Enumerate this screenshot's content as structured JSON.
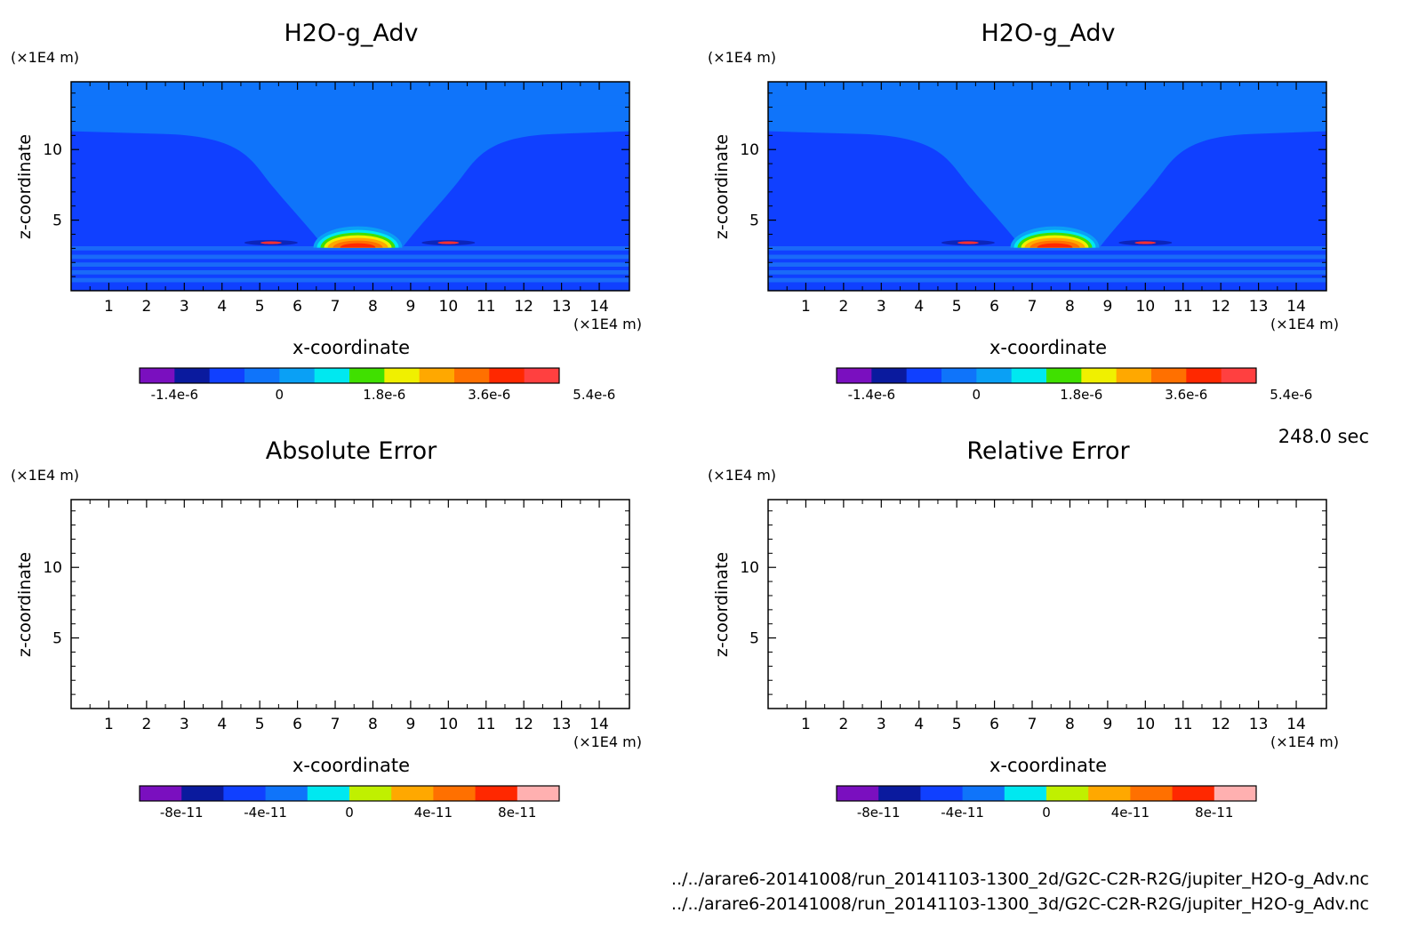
{
  "time_label": "248.0 sec",
  "files": [
    "../../arare6-20141008/run_20141103-1300_2d/G2C-C2R-R2G/jupiter_H2O-g_Adv.nc",
    "../../arare6-20141008/run_20141103-1300_3d/G2C-C2R-R2G/jupiter_H2O-g_Adv.nc"
  ],
  "colors": {
    "field_bg": "#1040ff",
    "upper_band": "#0f74fa",
    "lower_band": "#1a6af8"
  },
  "chart_data": [
    {
      "type": "heatmap",
      "title": "H2O-g_Adv",
      "xlabel": "x-coordinate",
      "ylabel": "z-coordinate",
      "x_unit": "(×1E4 m)",
      "y_unit": "(×1E4 m)",
      "xlim": [
        0,
        14.8
      ],
      "ylim": [
        0,
        14.8
      ],
      "xticks": [
        "1",
        "2",
        "3",
        "4",
        "5",
        "6",
        "7",
        "8",
        "9",
        "10",
        "11",
        "12",
        "13",
        "14"
      ],
      "yticks": [
        "5",
        "10"
      ],
      "features": {
        "bubble_center_x": 7.6,
        "bubble_center_z": 3.7,
        "peak_value": 5.4e-06
      },
      "colorbar": {
        "colors": [
          "#7a0fbf",
          "#0a1a9e",
          "#1040ff",
          "#0f74fa",
          "#0aa0f5",
          "#00e8f0",
          "#40e000",
          "#f0f000",
          "#ffa800",
          "#ff7000",
          "#ff2800",
          "#ff4040"
        ],
        "labels": [
          "-1.4e-6",
          "0",
          "1.8e-6",
          "3.6e-6",
          "5.4e-6"
        ]
      }
    },
    {
      "type": "heatmap",
      "title": "H2O-g_Adv",
      "xlabel": "x-coordinate",
      "ylabel": "z-coordinate",
      "x_unit": "(×1E4 m)",
      "y_unit": "(×1E4 m)",
      "xlim": [
        0,
        14.8
      ],
      "ylim": [
        0,
        14.8
      ],
      "xticks": [
        "1",
        "2",
        "3",
        "4",
        "5",
        "6",
        "7",
        "8",
        "9",
        "10",
        "11",
        "12",
        "13",
        "14"
      ],
      "yticks": [
        "5",
        "10"
      ],
      "features": {
        "bubble_center_x": 7.6,
        "bubble_center_z": 3.7,
        "peak_value": 5.4e-06
      },
      "colorbar": {
        "colors": [
          "#7a0fbf",
          "#0a1a9e",
          "#1040ff",
          "#0f74fa",
          "#0aa0f5",
          "#00e8f0",
          "#40e000",
          "#f0f000",
          "#ffa800",
          "#ff7000",
          "#ff2800",
          "#ff4040"
        ],
        "labels": [
          "-1.4e-6",
          "0",
          "1.8e-6",
          "3.6e-6",
          "5.4e-6"
        ]
      }
    },
    {
      "type": "heatmap",
      "title": "Absolute Error",
      "xlabel": "x-coordinate",
      "ylabel": "z-coordinate",
      "x_unit": "(×1E4 m)",
      "y_unit": "(×1E4 m)",
      "xlim": [
        0,
        14.8
      ],
      "ylim": [
        0,
        14.8
      ],
      "xticks": [
        "1",
        "2",
        "3",
        "4",
        "5",
        "6",
        "7",
        "8",
        "9",
        "10",
        "11",
        "12",
        "13",
        "14"
      ],
      "yticks": [
        "5",
        "10"
      ],
      "colorbar": {
        "colors": [
          "#7a0fbf",
          "#0a1a9e",
          "#1040ff",
          "#0f74fa",
          "#00e8f0",
          "#c0f000",
          "#ffa800",
          "#ff7000",
          "#ff2800",
          "#ffb0b0"
        ],
        "labels": [
          "-8e-11",
          "-4e-11",
          "0",
          "4e-11",
          "8e-11"
        ]
      }
    },
    {
      "type": "heatmap",
      "title": "Relative Error",
      "xlabel": "x-coordinate",
      "ylabel": "z-coordinate",
      "x_unit": "(×1E4 m)",
      "y_unit": "(×1E4 m)",
      "xlim": [
        0,
        14.8
      ],
      "ylim": [
        0,
        14.8
      ],
      "xticks": [
        "1",
        "2",
        "3",
        "4",
        "5",
        "6",
        "7",
        "8",
        "9",
        "10",
        "11",
        "12",
        "13",
        "14"
      ],
      "yticks": [
        "5",
        "10"
      ],
      "colorbar": {
        "colors": [
          "#7a0fbf",
          "#0a1a9e",
          "#1040ff",
          "#0f74fa",
          "#00e8f0",
          "#c0f000",
          "#ffa800",
          "#ff7000",
          "#ff2800",
          "#ffb0b0"
        ],
        "labels": [
          "-8e-11",
          "-4e-11",
          "0",
          "4e-11",
          "8e-11"
        ]
      }
    }
  ]
}
